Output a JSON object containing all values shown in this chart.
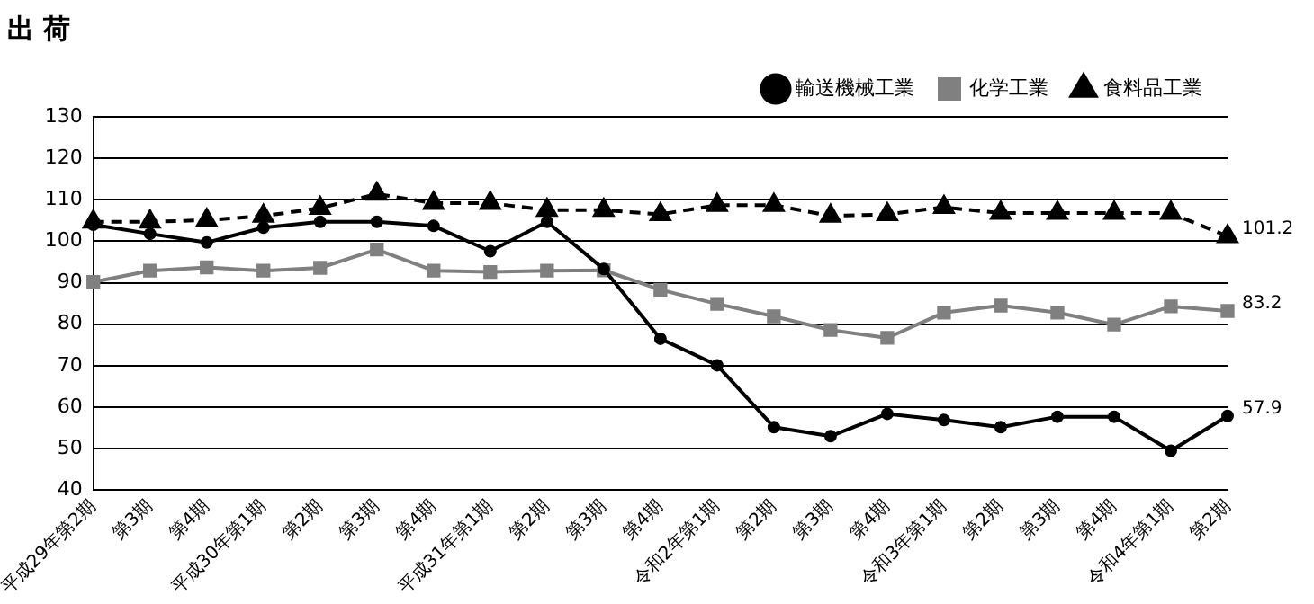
{
  "chart_data": {
    "type": "line",
    "title": "出 荷",
    "categories": [
      "平成29年第2期",
      "第3期",
      "第4期",
      "平成30年第1期",
      "第2期",
      "第3期",
      "第4期",
      "平成31年第1期",
      "第2期",
      "第3期",
      "第4期",
      "令和2年第1期",
      "第2期",
      "第3期",
      "第4期",
      "令和3年第1期",
      "第2期",
      "第3期",
      "第4期",
      "令和4年第1期",
      "第2期"
    ],
    "series": [
      {
        "name": "輸送機械工業",
        "color": "#000000",
        "marker": "circle",
        "line_style": "solid",
        "values": [
          104.0,
          101.8,
          99.7,
          103.3,
          104.7,
          104.7,
          103.7,
          97.6,
          104.7,
          93.3,
          76.5,
          70.1,
          55.2,
          53.0,
          58.4,
          56.9,
          55.2,
          57.7,
          57.7,
          49.5,
          57.9
        ],
        "value_labels": [
          null,
          null,
          null,
          null,
          null,
          null,
          null,
          null,
          null,
          null,
          null,
          null,
          null,
          null,
          null,
          null,
          null,
          null,
          null,
          null,
          "57.9"
        ]
      },
      {
        "name": "化学工業",
        "color": "#808080",
        "marker": "square",
        "line_style": "solid",
        "values": [
          90.2,
          92.9,
          93.7,
          92.9,
          93.6,
          98.0,
          92.9,
          92.6,
          92.9,
          93.0,
          88.3,
          84.9,
          81.9,
          78.6,
          76.7,
          82.8,
          84.5,
          82.8,
          79.9,
          84.3,
          83.2
        ],
        "value_labels": [
          null,
          null,
          null,
          null,
          null,
          null,
          null,
          null,
          null,
          null,
          null,
          null,
          null,
          null,
          null,
          null,
          null,
          null,
          null,
          null,
          "83.2"
        ]
      },
      {
        "name": "食料品工業",
        "color": "#000000",
        "marker": "triangle",
        "line_style": "dashed",
        "values": [
          104.7,
          104.7,
          105.1,
          106.1,
          108.0,
          111.4,
          109.2,
          109.2,
          107.5,
          107.5,
          106.5,
          108.7,
          108.7,
          106.1,
          106.5,
          108.2,
          106.8,
          106.8,
          106.8,
          106.8,
          101.2
        ],
        "value_labels": [
          null,
          null,
          null,
          null,
          null,
          null,
          null,
          null,
          null,
          null,
          null,
          null,
          null,
          null,
          null,
          null,
          null,
          null,
          null,
          null,
          "101.2"
        ]
      }
    ],
    "ylim": [
      40,
      130
    ],
    "yticks": [
      40,
      50,
      60,
      70,
      80,
      90,
      100,
      110,
      120,
      130
    ],
    "grid": "y",
    "legend": "top right"
  }
}
